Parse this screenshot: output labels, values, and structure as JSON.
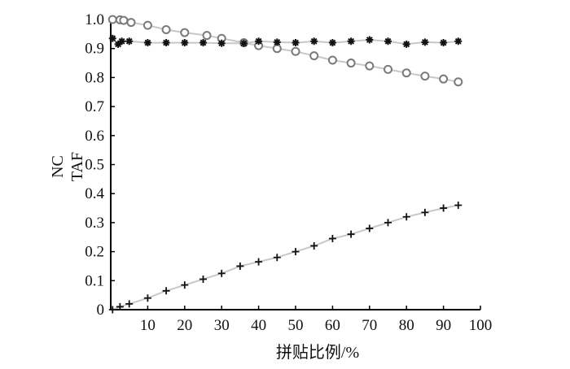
{
  "chart_data": {
    "type": "line",
    "xlabel": "拼贴比例/%",
    "ylabel": [
      "NC",
      "TAF"
    ],
    "xlim": [
      0,
      100
    ],
    "ylim": [
      0,
      1.0
    ],
    "xticks": [
      10,
      20,
      30,
      40,
      50,
      60,
      70,
      80,
      90,
      100
    ],
    "yticks": [
      0,
      0.1,
      0.2,
      0.3,
      0.4,
      0.5,
      0.6,
      0.7,
      0.8,
      0.9,
      1.0
    ],
    "grid": false,
    "series": [
      {
        "marker": "circle",
        "x": [
          0.5,
          2.5,
          3.5,
          5.5,
          10,
          15,
          20,
          26,
          30,
          36,
          40,
          45,
          50,
          55,
          60,
          65,
          70,
          75,
          80,
          85,
          90,
          94
        ],
        "values": [
          1.0,
          0.999,
          0.997,
          0.99,
          0.98,
          0.965,
          0.955,
          0.945,
          0.935,
          0.92,
          0.91,
          0.9,
          0.89,
          0.875,
          0.86,
          0.85,
          0.84,
          0.828,
          0.816,
          0.805,
          0.795,
          0.785
        ]
      },
      {
        "marker": "star",
        "x": [
          0.5,
          2,
          3,
          5,
          10,
          15,
          20,
          25,
          30,
          36,
          40,
          45,
          50,
          55,
          60,
          65,
          70,
          75,
          80,
          85,
          90,
          94
        ],
        "values": [
          0.935,
          0.915,
          0.925,
          0.925,
          0.92,
          0.92,
          0.92,
          0.92,
          0.918,
          0.918,
          0.925,
          0.922,
          0.92,
          0.925,
          0.92,
          0.925,
          0.93,
          0.925,
          0.915,
          0.922,
          0.92,
          0.925
        ]
      },
      {
        "marker": "plus",
        "x": [
          0.5,
          2.5,
          5,
          10,
          15,
          20,
          25,
          30,
          35,
          40,
          45,
          50,
          55,
          60,
          65,
          70,
          75,
          80,
          85,
          90,
          94
        ],
        "values": [
          0.0,
          0.01,
          0.02,
          0.04,
          0.065,
          0.085,
          0.105,
          0.125,
          0.15,
          0.165,
          0.18,
          0.2,
          0.22,
          0.245,
          0.26,
          0.28,
          0.3,
          0.32,
          0.335,
          0.35,
          0.36
        ]
      }
    ]
  }
}
